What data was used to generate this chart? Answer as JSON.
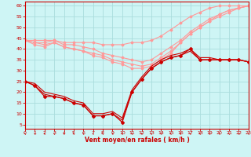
{
  "xlabel": "Vent moyen/en rafales ( km/h )",
  "bg_color": "#cef5f5",
  "grid_color": "#aadddd",
  "xlim": [
    0,
    23
  ],
  "ylim": [
    3,
    62
  ],
  "yticks": [
    5,
    10,
    15,
    20,
    25,
    30,
    35,
    40,
    45,
    50,
    55,
    60
  ],
  "xticks": [
    0,
    1,
    2,
    3,
    4,
    5,
    6,
    7,
    8,
    9,
    10,
    11,
    12,
    13,
    14,
    15,
    16,
    17,
    18,
    19,
    20,
    21,
    22,
    23
  ],
  "light_lines": [
    {
      "y": [
        44,
        42,
        41,
        43,
        41,
        40,
        39,
        37,
        36,
        34,
        33,
        31,
        31,
        32,
        35,
        38,
        43,
        47,
        50,
        53,
        56,
        58,
        59,
        60
      ]
    },
    {
      "y": [
        44,
        43,
        42,
        43,
        41,
        40,
        39,
        38,
        37,
        35,
        34,
        33,
        32,
        33,
        36,
        39,
        43,
        47,
        50,
        53,
        55,
        57,
        59,
        60
      ]
    },
    {
      "y": [
        44,
        43,
        43,
        44,
        42,
        42,
        41,
        40,
        38,
        37,
        36,
        35,
        34,
        35,
        38,
        41,
        44,
        48,
        51,
        54,
        56,
        58,
        59,
        60
      ]
    },
    {
      "y": [
        44,
        44,
        44,
        44,
        43,
        43,
        43,
        43,
        42,
        42,
        42,
        43,
        43,
        44,
        46,
        49,
        52,
        55,
        57,
        59,
        60,
        60,
        60,
        60
      ]
    }
  ],
  "dark_lines": [
    {
      "y": [
        25,
        23,
        18,
        18,
        17,
        15,
        14,
        9,
        9,
        10,
        6,
        20,
        26,
        31,
        34,
        36,
        37,
        40,
        35,
        35,
        35,
        35,
        35,
        34
      ],
      "marker": true
    },
    {
      "y": [
        25,
        23,
        19,
        18,
        17,
        15,
        14,
        9,
        9,
        10,
        7,
        20,
        26,
        31,
        34,
        36,
        37,
        39,
        35,
        35,
        35,
        35,
        35,
        34
      ],
      "marker": false
    },
    {
      "y": [
        25,
        24,
        20,
        19,
        18,
        16,
        15,
        10,
        10,
        11,
        8,
        21,
        27,
        32,
        35,
        37,
        38,
        40,
        36,
        36,
        35,
        35,
        35,
        34
      ],
      "marker": false
    }
  ],
  "thin_line": [
    25,
    60
  ],
  "thin_line_x": [
    0,
    23
  ],
  "light_color": "#ff9999",
  "dark_color": "#cc0000",
  "tick_color": "#cc0000",
  "xlabel_color": "#cc0000"
}
